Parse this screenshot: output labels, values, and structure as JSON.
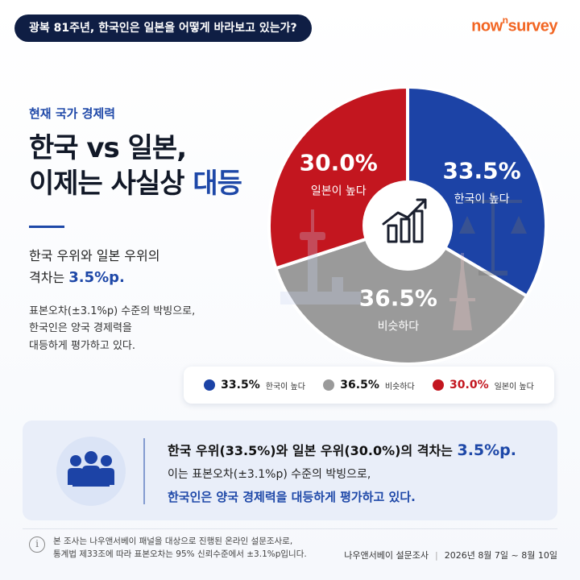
{
  "header": {
    "title_pill": "광복 81주년, 한국인은 일본을 어떻게 바라보고 있는가?",
    "brand_main": "now",
    "brand_sup": "n",
    "brand_tail": "survey"
  },
  "intro": {
    "eyebrow": "현재 국가 경제력",
    "headline_line1": "한국 vs 일본,",
    "headline_line2_plain": "이제는 사실상 ",
    "headline_line2_accent": "대등",
    "gap_line1": "한국 우위와 일본 우위의",
    "gap_line2_prefix": "격차는 ",
    "gap_value": "3.5%p.",
    "note_line1": "표본오차(±3.1%p) 수준의 박빙으로,",
    "note_line2": "한국인은 양국 경제력을",
    "note_line3": "대등하게 평가하고 있다."
  },
  "chart_data": {
    "type": "pie",
    "series": [
      {
        "name": "한국이 높다",
        "value": 33.5,
        "label": "33.5%",
        "color": "#1c43a6"
      },
      {
        "name": "비슷하다",
        "value": 36.5,
        "label": "36.5%",
        "color": "#9a9a9a"
      },
      {
        "name": "일본이 높다",
        "value": 30.0,
        "label": "30.0%",
        "color": "#c3161f"
      }
    ],
    "center_icon": "chart-growth-icon",
    "legend_position": "bottom"
  },
  "summary": {
    "line1_prefix": "한국 우위(33.5%)와 일본 우위(30.0%)의 격차는 ",
    "line1_value": "3.5%p.",
    "line2": "이는 표본오차(±3.1%p) 수준의 박빙으로,",
    "line3": "한국인은 양국 경제력을 대등하게 평가하고 있다.",
    "icon": "people-icon"
  },
  "footer": {
    "note_line1": "본 조사는 나우앤서베이 패널을 대상으로 진행된 온라인 설문조사로,",
    "note_line2": "통계법 제33조에 따라 표본오차는 95% 신뢰수준에서 ±3.1%p입니다.",
    "source": "나우앤서베이 설문조사",
    "date": "2026년 8월 7일 ~ 8월 10일"
  }
}
